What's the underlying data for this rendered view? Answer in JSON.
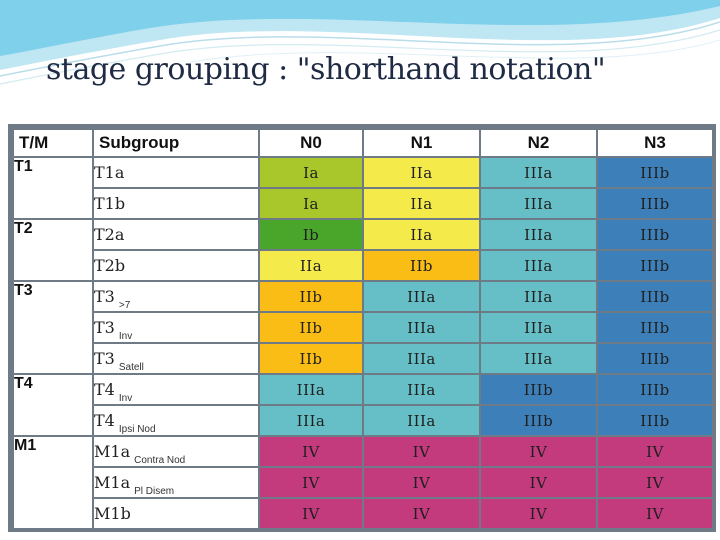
{
  "slide": {
    "title": "stage grouping : \"shorthand notation\""
  },
  "colors": {
    "Ia": "#a9c62a",
    "Ib": "#4aa52b",
    "IIa": "#f4ea4a",
    "IIb": "#f9bd16",
    "IIIa": "#66bfc6",
    "IIIb": "#3d7fb8",
    "IV": "#c33a7d"
  },
  "table": {
    "headers": [
      "T/M",
      "Subgroup",
      "N0",
      "N1",
      "N2",
      "N3"
    ],
    "groups": [
      {
        "tm": "T1",
        "rows": [
          {
            "code": "T1a",
            "qual": "",
            "stages": [
              "Ia",
              "IIa",
              "IIIa",
              "IIIb"
            ]
          },
          {
            "code": "T1b",
            "qual": "",
            "stages": [
              "Ia",
              "IIa",
              "IIIa",
              "IIIb"
            ]
          }
        ]
      },
      {
        "tm": "T2",
        "rows": [
          {
            "code": "T2a",
            "qual": "",
            "stages": [
              "Ib",
              "IIa",
              "IIIa",
              "IIIb"
            ]
          },
          {
            "code": "T2b",
            "qual": "",
            "stages": [
              "IIa",
              "IIb",
              "IIIa",
              "IIIb"
            ]
          }
        ]
      },
      {
        "tm": "T3",
        "rows": [
          {
            "code": "T3",
            "qual": ">7",
            "stages": [
              "IIb",
              "IIIa",
              "IIIa",
              "IIIb"
            ]
          },
          {
            "code": "T3",
            "qual": "Inv",
            "stages": [
              "IIb",
              "IIIa",
              "IIIa",
              "IIIb"
            ]
          },
          {
            "code": "T3",
            "qual": "Satell",
            "stages": [
              "IIb",
              "IIIa",
              "IIIa",
              "IIIb"
            ]
          }
        ]
      },
      {
        "tm": "T4",
        "rows": [
          {
            "code": "T4",
            "qual": "Inv",
            "stages": [
              "IIIa",
              "IIIa",
              "IIIb",
              "IIIb"
            ]
          },
          {
            "code": "T4",
            "qual": "Ipsi Nod",
            "stages": [
              "IIIa",
              "IIIa",
              "IIIb",
              "IIIb"
            ]
          }
        ]
      },
      {
        "tm": "M1",
        "rows": [
          {
            "code": "M1a",
            "qual": "Contra Nod",
            "stages": [
              "IV",
              "IV",
              "IV",
              "IV"
            ]
          },
          {
            "code": "M1a",
            "qual": "Pl Disem",
            "stages": [
              "IV",
              "IV",
              "IV",
              "IV"
            ]
          },
          {
            "code": "M1b",
            "qual": "",
            "stages": [
              "IV",
              "IV",
              "IV",
              "IV"
            ]
          }
        ]
      }
    ]
  }
}
